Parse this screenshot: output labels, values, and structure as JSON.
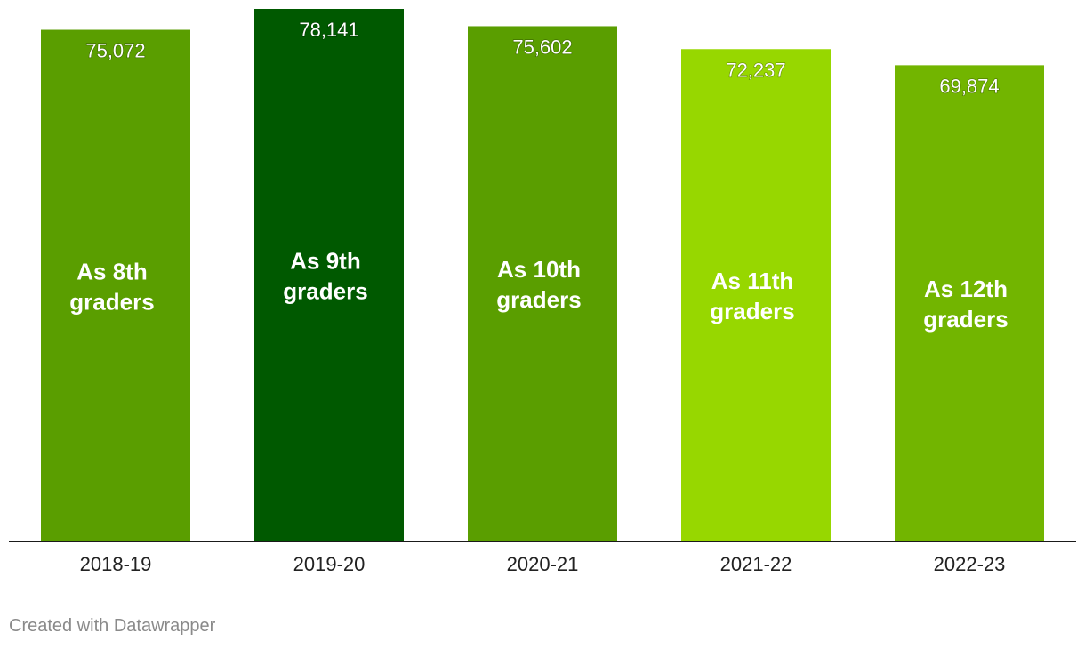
{
  "chart_data": {
    "type": "bar",
    "title": "",
    "xlabel": "",
    "ylabel": "",
    "ylim": [
      0,
      78141
    ],
    "grid": false,
    "categories": [
      "2018-19",
      "2019-20",
      "2020-21",
      "2021-22",
      "2022-23"
    ],
    "values": [
      75072,
      78141,
      75602,
      72237,
      69874
    ],
    "value_labels": [
      "75,072",
      "78,141",
      "75,602",
      "72,237",
      "69,874"
    ],
    "bar_annotations": [
      [
        "As 8th",
        "graders"
      ],
      [
        "As 9th",
        "graders"
      ],
      [
        "As 10th",
        "graders"
      ],
      [
        "As 11th",
        "graders"
      ],
      [
        "As 12th",
        "graders"
      ]
    ],
    "bar_colors": [
      "#5a9e00",
      "#005900",
      "#5a9e00",
      "#97d700",
      "#72b500"
    ]
  },
  "footer": {
    "credit": "Created with Datawrapper"
  }
}
